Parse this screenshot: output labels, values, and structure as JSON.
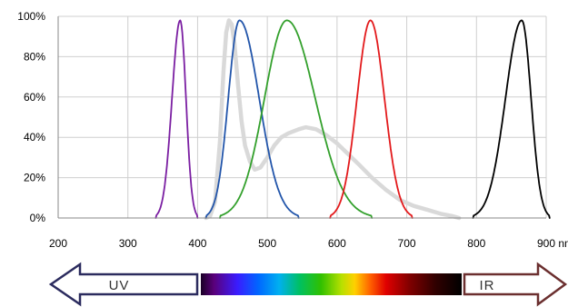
{
  "chart_data": {
    "type": "line",
    "title": "",
    "xlabel": "",
    "ylabel": "",
    "x_unit": "nm",
    "xlim": [
      200,
      900
    ],
    "ylim": [
      0,
      100
    ],
    "x_ticks": [
      200,
      300,
      400,
      500,
      600,
      700,
      800,
      900
    ],
    "x_tick_labels": [
      "200",
      "300",
      "400",
      "500",
      "600",
      "700",
      "800",
      "900 nm"
    ],
    "y_ticks": [
      0,
      20,
      40,
      60,
      80,
      100
    ],
    "y_tick_labels": [
      "0%",
      "20%",
      "40%",
      "60%",
      "80%",
      "100%"
    ],
    "grid": true,
    "legend": "none",
    "series": [
      {
        "color": "#7b1fa2",
        "peak_nm": 375,
        "peak_value": 98,
        "x_range": [
          340,
          400
        ]
      },
      {
        "color": "#d9d9d9",
        "x_range": [
          412,
          775
        ],
        "points": [
          [
            412,
            0
          ],
          [
            418,
            1
          ],
          [
            425,
            8
          ],
          [
            432,
            38
          ],
          [
            437,
            72
          ],
          [
            441,
            92
          ],
          [
            445,
            98
          ],
          [
            449,
            96
          ],
          [
            453,
            86
          ],
          [
            458,
            66
          ],
          [
            463,
            48
          ],
          [
            468,
            36
          ],
          [
            475,
            28
          ],
          [
            482,
            24
          ],
          [
            490,
            25
          ],
          [
            500,
            30
          ],
          [
            510,
            36
          ],
          [
            520,
            40
          ],
          [
            530,
            42
          ],
          [
            545,
            44
          ],
          [
            555,
            45
          ],
          [
            570,
            44
          ],
          [
            585,
            41
          ],
          [
            600,
            37
          ],
          [
            615,
            32
          ],
          [
            630,
            27
          ],
          [
            650,
            20
          ],
          [
            670,
            14
          ],
          [
            690,
            9
          ],
          [
            710,
            6
          ],
          [
            730,
            4
          ],
          [
            750,
            2
          ],
          [
            765,
            1
          ],
          [
            775,
            0
          ]
        ]
      },
      {
        "color": "#2255aa",
        "peak_nm": 460,
        "peak_value": 98,
        "x_range": [
          412,
          545
        ]
      },
      {
        "color": "#33a02c",
        "peak_nm": 528,
        "peak_value": 98,
        "x_range": [
          432,
          650
        ]
      },
      {
        "color": "#e31a1c",
        "peak_nm": 648,
        "peak_value": 98,
        "x_range": [
          590,
          708
        ]
      },
      {
        "color": "#000000",
        "peak_nm": 865,
        "peak_value": 98,
        "x_range": [
          795,
          905
        ]
      }
    ]
  },
  "bottom_bar": {
    "uv_label": "UV",
    "ir_label": "IR"
  }
}
